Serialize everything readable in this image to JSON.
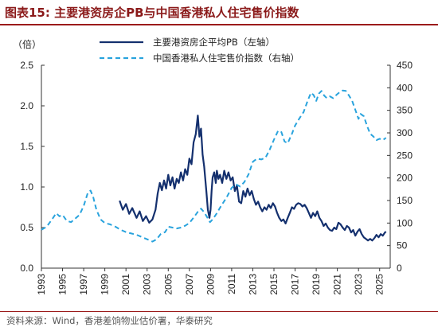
{
  "figure": {
    "title": "图表15:   主要港资房企PB与中国香港私人住宅售价指数",
    "source": "资料来源：Wind，香港差饷物业估价署，华泰研究"
  },
  "chart_data": {
    "type": "line",
    "left_axis_label": "（倍）",
    "left_axis": {
      "range": [
        0,
        2.5
      ],
      "ticks": [
        "0.0",
        "0.5",
        "1.0",
        "1.5",
        "2.0",
        "2.5"
      ]
    },
    "right_axis": {
      "range": [
        0,
        450
      ],
      "ticks": [
        "0",
        "50",
        "100",
        "150",
        "200",
        "250",
        "300",
        "350",
        "400",
        "450"
      ]
    },
    "x_range": [
      1993,
      2026
    ],
    "x_ticks": [
      "1993",
      "1995",
      "1997",
      "1999",
      "2001",
      "2003",
      "2005",
      "2007",
      "2009",
      "2011",
      "2013",
      "2015",
      "2017",
      "2019",
      "2021",
      "2023",
      "2025"
    ],
    "grid": false,
    "legend_position": "top",
    "series": [
      {
        "name": "主要港资房企平均PB（左轴）",
        "axis": "left",
        "color": "#14306e",
        "style": "solid",
        "points": [
          [
            2000.4,
            0.83
          ],
          [
            2000.7,
            0.72
          ],
          [
            2001.0,
            0.79
          ],
          [
            2001.3,
            0.67
          ],
          [
            2001.6,
            0.74
          ],
          [
            2002.0,
            0.62
          ],
          [
            2002.3,
            0.7
          ],
          [
            2002.6,
            0.58
          ],
          [
            2002.9,
            0.64
          ],
          [
            2003.2,
            0.56
          ],
          [
            2003.5,
            0.6
          ],
          [
            2003.8,
            0.72
          ],
          [
            2004.0,
            0.92
          ],
          [
            2004.2,
            1.05
          ],
          [
            2004.4,
            0.96
          ],
          [
            2004.6,
            1.08
          ],
          [
            2004.8,
            0.98
          ],
          [
            2005.0,
            1.15
          ],
          [
            2005.2,
            1.02
          ],
          [
            2005.4,
            1.12
          ],
          [
            2005.6,
            0.98
          ],
          [
            2005.8,
            1.1
          ],
          [
            2006.0,
            1.05
          ],
          [
            2006.2,
            1.18
          ],
          [
            2006.4,
            1.08
          ],
          [
            2006.6,
            1.22
          ],
          [
            2006.8,
            1.15
          ],
          [
            2007.0,
            1.35
          ],
          [
            2007.2,
            1.28
          ],
          [
            2007.4,
            1.55
          ],
          [
            2007.6,
            1.65
          ],
          [
            2007.8,
            1.88
          ],
          [
            2007.95,
            1.62
          ],
          [
            2008.1,
            1.72
          ],
          [
            2008.25,
            1.4
          ],
          [
            2008.4,
            1.25
          ],
          [
            2008.6,
            0.95
          ],
          [
            2008.75,
            0.72
          ],
          [
            2008.9,
            0.62
          ],
          [
            2009.0,
            0.72
          ],
          [
            2009.1,
            0.95
          ],
          [
            2009.2,
            1.12
          ],
          [
            2009.35,
            1.18
          ],
          [
            2009.5,
            1.05
          ],
          [
            2009.6,
            1.2
          ],
          [
            2009.75,
            1.1
          ],
          [
            2009.9,
            1.15
          ],
          [
            2010.1,
            1.05
          ],
          [
            2010.3,
            1.2
          ],
          [
            2010.5,
            1.1
          ],
          [
            2010.7,
            1.18
          ],
          [
            2010.9,
            1.08
          ],
          [
            2011.1,
            1.12
          ],
          [
            2011.3,
            0.95
          ],
          [
            2011.5,
            1.02
          ],
          [
            2011.7,
            0.82
          ],
          [
            2011.9,
            0.8
          ],
          [
            2012.1,
            0.95
          ],
          [
            2012.3,
            0.88
          ],
          [
            2012.5,
            0.98
          ],
          [
            2012.7,
            0.9
          ],
          [
            2012.9,
            0.95
          ],
          [
            2013.1,
            0.85
          ],
          [
            2013.3,
            0.78
          ],
          [
            2013.5,
            0.82
          ],
          [
            2013.7,
            0.75
          ],
          [
            2013.9,
            0.7
          ],
          [
            2014.1,
            0.75
          ],
          [
            2014.3,
            0.72
          ],
          [
            2014.5,
            0.78
          ],
          [
            2014.7,
            0.74
          ],
          [
            2014.9,
            0.8
          ],
          [
            2015.1,
            0.76
          ],
          [
            2015.3,
            0.68
          ],
          [
            2015.5,
            0.62
          ],
          [
            2015.7,
            0.58
          ],
          [
            2015.9,
            0.6
          ],
          [
            2016.1,
            0.55
          ],
          [
            2016.3,
            0.62
          ],
          [
            2016.5,
            0.68
          ],
          [
            2016.7,
            0.75
          ],
          [
            2016.9,
            0.73
          ],
          [
            2017.1,
            0.78
          ],
          [
            2017.3,
            0.8
          ],
          [
            2017.5,
            0.79
          ],
          [
            2017.7,
            0.76
          ],
          [
            2017.9,
            0.78
          ],
          [
            2018.1,
            0.74
          ],
          [
            2018.3,
            0.68
          ],
          [
            2018.5,
            0.62
          ],
          [
            2018.7,
            0.68
          ],
          [
            2018.9,
            0.64
          ],
          [
            2019.1,
            0.7
          ],
          [
            2019.3,
            0.62
          ],
          [
            2019.5,
            0.58
          ],
          [
            2019.7,
            0.52
          ],
          [
            2019.9,
            0.55
          ],
          [
            2020.1,
            0.5
          ],
          [
            2020.3,
            0.47
          ],
          [
            2020.5,
            0.46
          ],
          [
            2020.7,
            0.5
          ],
          [
            2020.9,
            0.48
          ],
          [
            2021.1,
            0.56
          ],
          [
            2021.3,
            0.54
          ],
          [
            2021.5,
            0.5
          ],
          [
            2021.7,
            0.47
          ],
          [
            2021.9,
            0.52
          ],
          [
            2022.1,
            0.5
          ],
          [
            2022.3,
            0.44
          ],
          [
            2022.5,
            0.47
          ],
          [
            2022.7,
            0.4
          ],
          [
            2022.9,
            0.45
          ],
          [
            2023.1,
            0.48
          ],
          [
            2023.3,
            0.42
          ],
          [
            2023.5,
            0.38
          ],
          [
            2023.7,
            0.36
          ],
          [
            2023.9,
            0.34
          ],
          [
            2024.1,
            0.36
          ],
          [
            2024.3,
            0.34
          ],
          [
            2024.5,
            0.37
          ],
          [
            2024.7,
            0.41
          ],
          [
            2024.9,
            0.38
          ],
          [
            2025.1,
            0.42
          ],
          [
            2025.3,
            0.4
          ],
          [
            2025.5,
            0.44
          ],
          [
            2025.6,
            0.45
          ]
        ]
      },
      {
        "name": "中国香港私人住宅售价指数（右轴）",
        "axis": "right",
        "color": "#29a3dd",
        "style": "dashed",
        "points": [
          [
            1993.0,
            85
          ],
          [
            1993.5,
            92
          ],
          [
            1994.0,
            108
          ],
          [
            1994.4,
            122
          ],
          [
            1994.7,
            115
          ],
          [
            1995.0,
            118
          ],
          [
            1995.4,
            105
          ],
          [
            1995.8,
            102
          ],
          [
            1996.2,
            110
          ],
          [
            1996.6,
            118
          ],
          [
            1997.0,
            138
          ],
          [
            1997.4,
            168
          ],
          [
            1997.65,
            172
          ],
          [
            1997.9,
            158
          ],
          [
            1998.2,
            130
          ],
          [
            1998.6,
            108
          ],
          [
            1999.0,
            100
          ],
          [
            1999.5,
            97
          ],
          [
            2000.0,
            92
          ],
          [
            2000.5,
            85
          ],
          [
            2001.0,
            80
          ],
          [
            2001.5,
            77
          ],
          [
            2002.0,
            74
          ],
          [
            2002.5,
            69
          ],
          [
            2003.0,
            64
          ],
          [
            2003.5,
            59
          ],
          [
            2003.9,
            64
          ],
          [
            2004.3,
            76
          ],
          [
            2004.7,
            80
          ],
          [
            2005.0,
            92
          ],
          [
            2005.4,
            90
          ],
          [
            2005.8,
            88
          ],
          [
            2006.2,
            90
          ],
          [
            2006.6,
            94
          ],
          [
            2007.0,
            100
          ],
          [
            2007.4,
            112
          ],
          [
            2007.8,
            125
          ],
          [
            2008.1,
            132
          ],
          [
            2008.4,
            124
          ],
          [
            2008.7,
            112
          ],
          [
            2008.95,
            102
          ],
          [
            2009.2,
            108
          ],
          [
            2009.6,
            122
          ],
          [
            2010.0,
            138
          ],
          [
            2010.5,
            156
          ],
          [
            2011.0,
            178
          ],
          [
            2011.4,
            186
          ],
          [
            2011.8,
            181
          ],
          [
            2012.2,
            191
          ],
          [
            2012.6,
            208
          ],
          [
            2013.0,
            236
          ],
          [
            2013.4,
            243
          ],
          [
            2013.8,
            241
          ],
          [
            2014.2,
            245
          ],
          [
            2014.6,
            263
          ],
          [
            2015.0,
            285
          ],
          [
            2015.4,
            305
          ],
          [
            2015.7,
            302
          ],
          [
            2016.0,
            281
          ],
          [
            2016.3,
            277
          ],
          [
            2016.7,
            298
          ],
          [
            2017.0,
            316
          ],
          [
            2017.4,
            332
          ],
          [
            2017.8,
            346
          ],
          [
            2018.2,
            372
          ],
          [
            2018.5,
            389
          ],
          [
            2018.75,
            384
          ],
          [
            2019.0,
            371
          ],
          [
            2019.25,
            387
          ],
          [
            2019.5,
            393
          ],
          [
            2019.75,
            383
          ],
          [
            2020.0,
            377
          ],
          [
            2020.3,
            381
          ],
          [
            2020.6,
            377
          ],
          [
            2020.9,
            384
          ],
          [
            2021.2,
            390
          ],
          [
            2021.5,
            394
          ],
          [
            2021.8,
            393
          ],
          [
            2022.1,
            383
          ],
          [
            2022.4,
            371
          ],
          [
            2022.7,
            351
          ],
          [
            2023.0,
            331
          ],
          [
            2023.2,
            342
          ],
          [
            2023.5,
            337
          ],
          [
            2023.8,
            316
          ],
          [
            2024.1,
            298
          ],
          [
            2024.4,
            292
          ],
          [
            2024.7,
            284
          ],
          [
            2025.0,
            287
          ],
          [
            2025.3,
            284
          ],
          [
            2025.6,
            289
          ]
        ]
      }
    ]
  }
}
